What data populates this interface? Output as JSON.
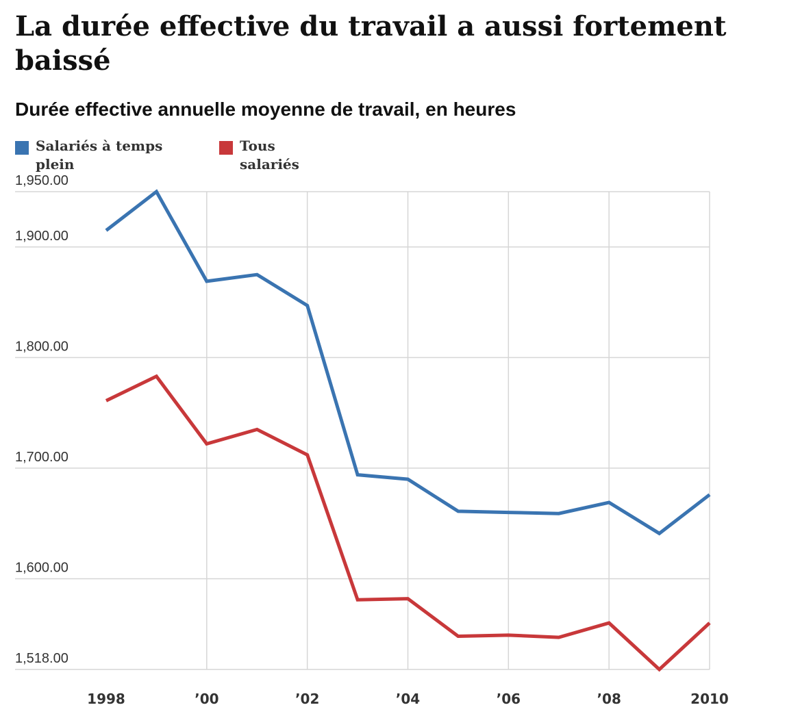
{
  "title": "La durée effective du travail a aussi fortement baissé",
  "subtitle": "Durée effective annuelle moyenne de travail, en heures",
  "legend": [
    {
      "label": "Salariés à temps plein",
      "color": "#3a74b1"
    },
    {
      "label": "Tous salariés",
      "color": "#c8383a"
    }
  ],
  "chart_data": {
    "type": "line",
    "x": [
      1998,
      1999,
      2000,
      2001,
      2002,
      2003,
      2004,
      2005,
      2006,
      2007,
      2008,
      2009,
      2010
    ],
    "x_tick_values": [
      1998,
      2000,
      2002,
      2004,
      2006,
      2008,
      2010
    ],
    "x_tick_labels": [
      "1998",
      "’00",
      "’02",
      "’04",
      "’06",
      "’08",
      "2010"
    ],
    "y_tick_values": [
      1518,
      1600,
      1700,
      1800,
      1900,
      1950
    ],
    "y_tick_labels": [
      "1,518.00",
      "1,600.00",
      "1,700.00",
      "1,800.00",
      "1,900.00",
      "1,950.00"
    ],
    "ylim": [
      1518,
      1950
    ],
    "grid": true,
    "series": [
      {
        "name": "Salariés à temps plein",
        "color": "#3a74b1",
        "values": [
          1915,
          1950,
          1869,
          1875,
          1847,
          1694,
          1690,
          1661,
          1660,
          1659,
          1669,
          1641,
          1676
        ]
      },
      {
        "name": "Tous salariés",
        "color": "#c8383a",
        "values": [
          1761,
          1783,
          1722,
          1735,
          1712,
          1581,
          1582,
          1548,
          1549,
          1547,
          1560,
          1518,
          1560
        ]
      }
    ]
  }
}
